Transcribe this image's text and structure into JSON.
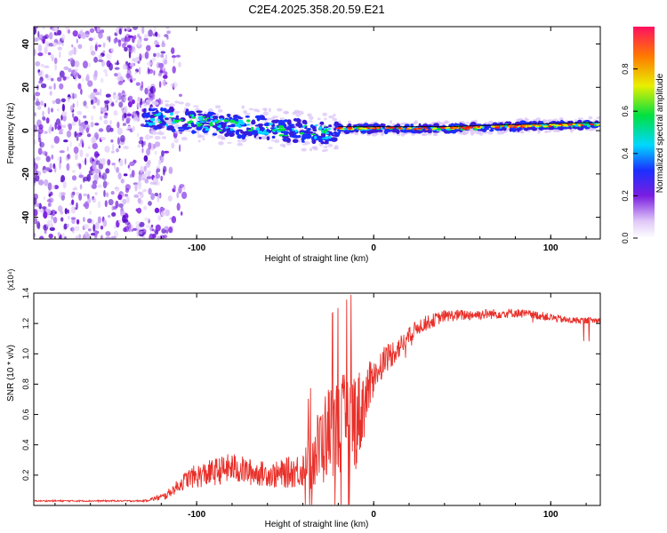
{
  "title": "C2E4.2025.358.20.59.E21",
  "colors": {
    "snr_line": "#e8302a",
    "track_core": "#ff1a1a",
    "speckle": "#7a1ee0"
  },
  "chart_data": [
    {
      "type": "heatmap",
      "name": "spectrogram",
      "xlabel": "Height of straight line (km)",
      "ylabel": "Frequency (Hz)",
      "xlim": [
        -192,
        128
      ],
      "ylim": [
        -50,
        48
      ],
      "xticks": [
        -100,
        0,
        100
      ],
      "yticks": [
        -40,
        -20,
        0,
        20,
        40
      ],
      "track": {
        "x": [
          -130,
          -100,
          -60,
          -25,
          -20,
          0,
          40,
          80,
          128
        ],
        "y": [
          6,
          4,
          1,
          -1,
          1,
          1,
          1,
          2,
          3
        ]
      },
      "colorbar": {
        "label": "Normalized spectral amplitude",
        "range": [
          0,
          1
        ],
        "ticks": [
          0.0,
          0.2,
          0.4,
          0.6,
          0.8
        ]
      }
    },
    {
      "type": "line",
      "name": "snr",
      "xlabel": "Height of straight line (km)",
      "ylabel": "SNR (10 * v/v)",
      "yscale_note": "(x10⁴)",
      "xlim": [
        -192,
        128
      ],
      "ylim": [
        0,
        1.4
      ],
      "xticks": [
        -100,
        0,
        100
      ],
      "yticks": [
        0.2,
        0.4,
        0.6,
        0.8,
        1.0,
        1.2,
        1.4
      ],
      "envelope": {
        "x": [
          -192,
          -130,
          -118,
          -105,
          -90,
          -80,
          -70,
          -55,
          -40,
          -32,
          -25,
          -15,
          -8,
          0,
          5,
          15,
          25,
          40,
          60,
          80,
          95,
          110,
          128
        ],
        "y": [
          0.03,
          0.03,
          0.06,
          0.18,
          0.22,
          0.25,
          0.22,
          0.2,
          0.24,
          0.35,
          0.5,
          0.55,
          0.6,
          0.85,
          0.95,
          1.05,
          1.18,
          1.25,
          1.26,
          1.27,
          1.25,
          1.22,
          1.22
        ]
      },
      "noise": {
        "x": [
          -192,
          -130,
          -115,
          -100,
          -80,
          -60,
          -40,
          -30,
          -10,
          0,
          20,
          40,
          128
        ],
        "y": [
          0.005,
          0.005,
          0.03,
          0.08,
          0.1,
          0.08,
          0.12,
          0.3,
          0.35,
          0.12,
          0.06,
          0.04,
          0.02
        ]
      }
    }
  ]
}
